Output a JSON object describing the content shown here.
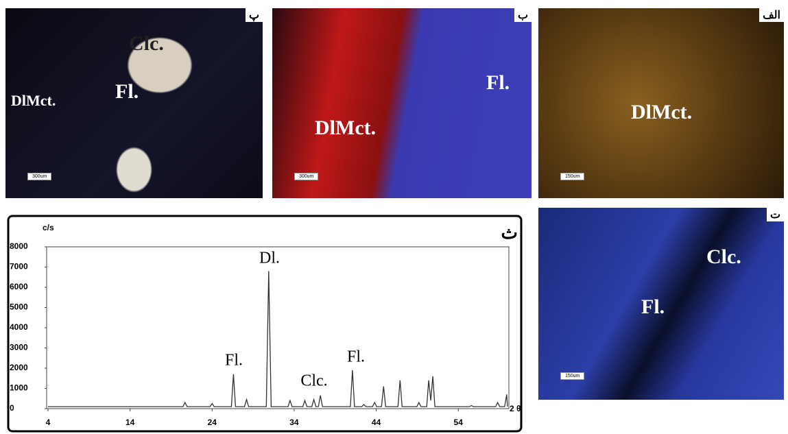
{
  "panels": [
    {
      "letter": "پ",
      "labels": [
        "Clc.",
        "Fl.",
        "DlMct."
      ],
      "scale": "300um"
    },
    {
      "letter": "ب",
      "labels": [
        "DlMct.",
        "Fl."
      ],
      "scale": "300um"
    },
    {
      "letter": "الف",
      "labels": [
        "DlMct."
      ],
      "scale": "150um"
    },
    {
      "letter": "ت",
      "labels": [
        "Clc.",
        "Fl."
      ],
      "scale": "150um"
    }
  ],
  "chart_data": {
    "type": "line",
    "panel_letter": "ث",
    "y_label": "c/s",
    "x_label": "2 θ",
    "annotations": [
      "Dl.",
      "Fl.",
      "Clc.",
      "Fl."
    ],
    "xlim": [
      4,
      60
    ],
    "xticks": [
      4,
      14,
      24,
      34,
      44,
      54
    ],
    "ylim": [
      0,
      8000
    ],
    "yticks": [
      0,
      1000,
      2000,
      3000,
      4000,
      5000,
      6000,
      7000,
      8000
    ],
    "series": [
      {
        "color": "#333333",
        "x": [
          4,
          20.45,
          20.7,
          20.95,
          23.75,
          24,
          24.25,
          26.35,
          26.6,
          26.85,
          27.95,
          28.2,
          28.45,
          30.6,
          30.9,
          31.2,
          33.25,
          33.5,
          33.75,
          35.05,
          35.3,
          35.55,
          36.15,
          36.4,
          36.65,
          36.95,
          37.2,
          37.45,
          40.85,
          41.1,
          41.35,
          42.25,
          42.5,
          42.75,
          43.55,
          43.8,
          44.05,
          44.65,
          44.9,
          45.15,
          46.65,
          46.9,
          47.15,
          48.95,
          49.2,
          49.45,
          50.15,
          50.4,
          50.65,
          50.9,
          51.15,
          55.35,
          55.6,
          55.85,
          58.55,
          58.8,
          59.05,
          59.65,
          59.9,
          60
        ],
        "values": [
          100,
          100,
          300,
          100,
          100,
          250,
          100,
          100,
          1700,
          100,
          100,
          450,
          100,
          100,
          6800,
          100,
          100,
          400,
          100,
          100,
          400,
          100,
          100,
          450,
          100,
          100,
          650,
          100,
          100,
          1900,
          100,
          100,
          200,
          100,
          100,
          300,
          100,
          100,
          1100,
          100,
          100,
          1400,
          100,
          100,
          300,
          100,
          100,
          1400,
          400,
          1600,
          100,
          100,
          150,
          100,
          100,
          300,
          100,
          100,
          700,
          100
        ]
      }
    ]
  }
}
